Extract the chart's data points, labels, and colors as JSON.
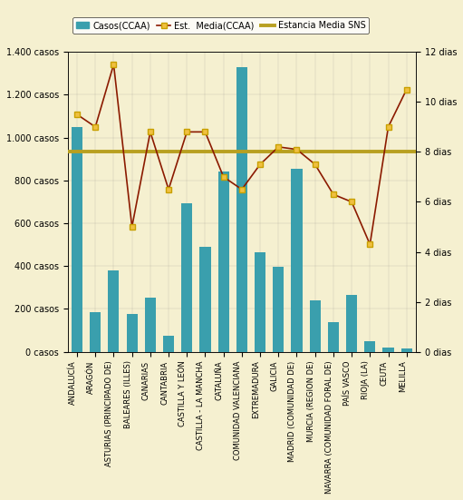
{
  "categories": [
    "ANDALUCÍA",
    "ARAGÓN",
    "ASTURIAS (PRINCIPADO DE)",
    "BALEARES (ILLES)",
    "CANARIAS",
    "CANTABRIA",
    "CASTILLA Y LEÓN",
    "CASTILLA - LA MANCHA",
    "CATALUÑA",
    "COMUNIDAD VALENCIANA",
    "EXTREMADURA",
    "GALICIA",
    "MADRID (COMUNIDAD DE)",
    "MURCIA (REGION DE)",
    "NAVARRA (COMUNIDAD FORAL DE)",
    "PAÍS VASCO",
    "RIOJA (LA)",
    "CEUTA",
    "MELILLA"
  ],
  "casos": [
    1050,
    185,
    380,
    175,
    255,
    75,
    695,
    490,
    840,
    1330,
    465,
    395,
    855,
    240,
    140,
    265,
    50,
    20,
    15
  ],
  "estancia_media": [
    9.5,
    9.0,
    11.5,
    5.0,
    8.8,
    6.5,
    8.8,
    8.8,
    7.0,
    6.5,
    7.5,
    8.2,
    8.1,
    7.5,
    6.3,
    6.0,
    4.3,
    9.0,
    10.5
  ],
  "estancia_media_sns": 8.0,
  "bar_color": "#3a9fad",
  "line_color": "#8b1a00",
  "marker_facecolor": "#f0c040",
  "marker_edgecolor": "#c8a000",
  "sns_line_color": "#b8a020",
  "background_color": "#f5f0d0",
  "ylim_left": [
    0,
    1400
  ],
  "ylim_right": [
    0,
    12
  ],
  "yticks_left": [
    0,
    200,
    400,
    600,
    800,
    1000,
    1200,
    1400
  ],
  "ytick_labels_left": [
    "0 casos",
    "200 casos",
    "400 casos",
    "600 casos",
    "800 casos",
    "1.000 casos",
    "1.200 casos",
    "1.400 casos"
  ],
  "yticks_right": [
    0,
    2,
    4,
    6,
    8,
    10,
    12
  ],
  "ytick_labels_right": [
    "0 dias",
    "2 dias",
    "4 dias",
    "6 dias",
    "8 dias",
    "10 dias",
    "12 dias"
  ]
}
